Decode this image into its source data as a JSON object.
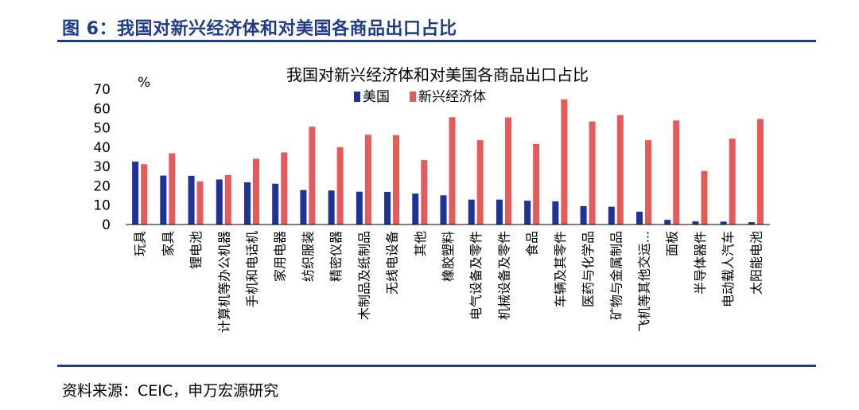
{
  "figure_title": "图 6：我国对新兴经济体和对美国各商品出口占比",
  "source": "资料来源：CEIC，申万宏源研究",
  "colors": {
    "us": "#1f3296",
    "emerging": "#e65a5a",
    "accent": "#1f3b8c"
  },
  "chart_data": {
    "type": "bar",
    "title": "我国对新兴经济体和对美国各商品出口占比",
    "ylabel": "%",
    "xlabel": "",
    "ylim": [
      0,
      70
    ],
    "yticks": [
      0,
      10,
      20,
      30,
      40,
      50,
      60,
      70
    ],
    "grid": false,
    "legend_position": "top",
    "categories": [
      "玩具",
      "家具",
      "锂电池",
      "计算机等办公机器",
      "手机和电话机",
      "家用电器",
      "纺织服装",
      "精密仪器",
      "木制品及纸制品",
      "无线电设备",
      "其他",
      "橡胶塑料",
      "电气设备及零件",
      "机械设备及零件",
      "食品",
      "车辆及其零件",
      "医药与化学品",
      "矿物与金属制品",
      "飞机等其他交运...",
      "面板",
      "半导体器件",
      "电动载人汽车",
      "太阳能电池"
    ],
    "series": [
      {
        "name": "美国",
        "values": [
          32.5,
          25.3,
          25.2,
          23.3,
          21.8,
          21.1,
          17.8,
          17.6,
          17.0,
          16.9,
          16.0,
          15.1,
          12.9,
          12.9,
          12.3,
          12.0,
          9.5,
          9.2,
          6.6,
          2.4,
          1.6,
          1.5,
          1.2
        ]
      },
      {
        "name": "新兴经济体",
        "values": [
          31.2,
          36.9,
          22.3,
          25.6,
          34.0,
          37.3,
          50.6,
          40.0,
          46.4,
          46.2,
          33.3,
          55.5,
          43.6,
          55.4,
          41.6,
          64.8,
          53.3,
          56.6,
          43.6,
          53.8,
          27.7,
          44.4,
          54.6
        ]
      }
    ]
  }
}
